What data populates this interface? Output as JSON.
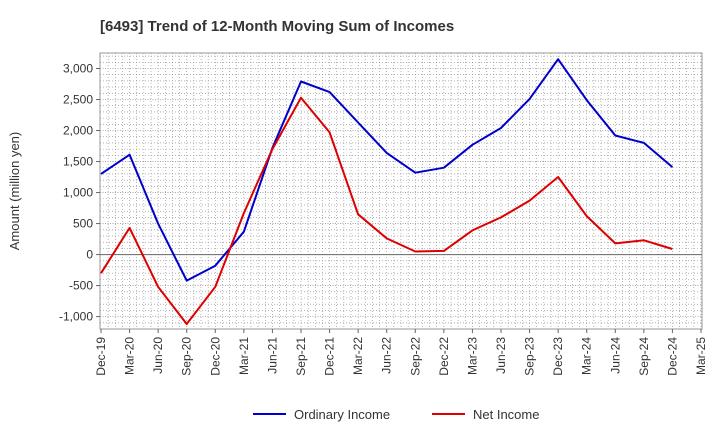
{
  "chart_data": {
    "type": "line",
    "title": "[6493]  Trend of 12-Month Moving Sum of Incomes",
    "xlabel": "",
    "ylabel": "Amount (million yen)",
    "ylim": [
      -1200,
      3250
    ],
    "yticks": [
      -1000,
      -500,
      0,
      500,
      1000,
      1500,
      2000,
      2500,
      3000
    ],
    "ytick_labels": [
      "-1,000",
      "-500",
      "0",
      "500",
      "1,000",
      "1,500",
      "2,000",
      "2,500",
      "3,000"
    ],
    "categories": [
      "Dec-19",
      "Mar-20",
      "Jun-20",
      "Sep-20",
      "Dec-20",
      "Mar-21",
      "Jun-21",
      "Sep-21",
      "Dec-21",
      "Mar-22",
      "Jun-22",
      "Sep-22",
      "Dec-22",
      "Mar-23",
      "Jun-23",
      "Sep-23",
      "Dec-23",
      "Mar-24",
      "Jun-24",
      "Sep-24",
      "Dec-24",
      "Mar-25"
    ],
    "grid": true,
    "legend_position": "bottom-center",
    "series": [
      {
        "name": "Ordinary Income",
        "color": "#0000cc",
        "values": [
          1300,
          1610,
          500,
          -420,
          -180,
          370,
          1720,
          2790,
          2620,
          2130,
          1640,
          1320,
          1400,
          1770,
          2040,
          2510,
          3150,
          2490,
          1920,
          1800,
          1410,
          null
        ]
      },
      {
        "name": "Net Income",
        "color": "#dd0000",
        "values": [
          -300,
          430,
          -520,
          -1120,
          -520,
          670,
          1700,
          2530,
          1970,
          650,
          260,
          50,
          60,
          390,
          600,
          870,
          1250,
          620,
          180,
          230,
          90,
          null
        ]
      }
    ]
  }
}
